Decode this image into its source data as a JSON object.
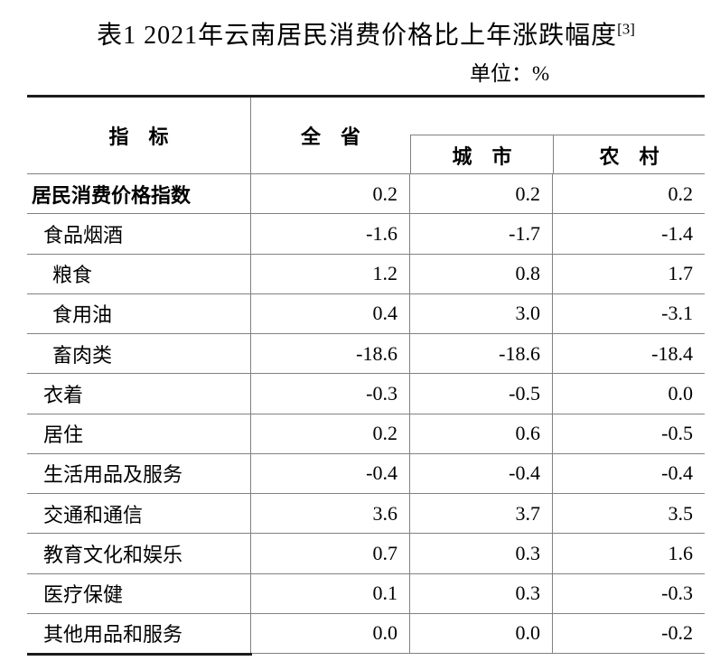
{
  "title": {
    "text": "表1 2021年云南居民消费价格比上年涨跌幅度",
    "footnote_ref": "[3]"
  },
  "unit_label": "单位：%",
  "table": {
    "header": {
      "indicator": "指　标",
      "province": "全　省",
      "city": "城　市",
      "rural": "农　村"
    },
    "rows": [
      {
        "label": "居民消费价格指数",
        "indent": 0,
        "province": "0.2",
        "city": "0.2",
        "rural": "0.2"
      },
      {
        "label": "食品烟酒",
        "indent": 1,
        "province": "-1.6",
        "city": "-1.7",
        "rural": "-1.4"
      },
      {
        "label": "粮食",
        "indent": 2,
        "province": "1.2",
        "city": "0.8",
        "rural": "1.7"
      },
      {
        "label": "食用油",
        "indent": 2,
        "province": "0.4",
        "city": "3.0",
        "rural": "-3.1"
      },
      {
        "label": "畜肉类",
        "indent": 2,
        "province": "-18.6",
        "city": "-18.6",
        "rural": "-18.4"
      },
      {
        "label": "衣着",
        "indent": 1,
        "province": "-0.3",
        "city": "-0.5",
        "rural": "0.0"
      },
      {
        "label": "居住",
        "indent": 1,
        "province": "0.2",
        "city": "0.6",
        "rural": "-0.5"
      },
      {
        "label": "生活用品及服务",
        "indent": 1,
        "province": "-0.4",
        "city": "-0.4",
        "rural": "-0.4"
      },
      {
        "label": "交通和通信",
        "indent": 1,
        "province": "3.6",
        "city": "3.7",
        "rural": "3.5"
      },
      {
        "label": "教育文化和娱乐",
        "indent": 1,
        "province": "0.7",
        "city": "0.3",
        "rural": "1.6"
      },
      {
        "label": "医疗保健",
        "indent": 1,
        "province": "0.1",
        "city": "0.3",
        "rural": "-0.3"
      },
      {
        "label": "其他用品和服务",
        "indent": 1,
        "province": "0.0",
        "city": "0.0",
        "rural": "-0.2"
      }
    ]
  }
}
